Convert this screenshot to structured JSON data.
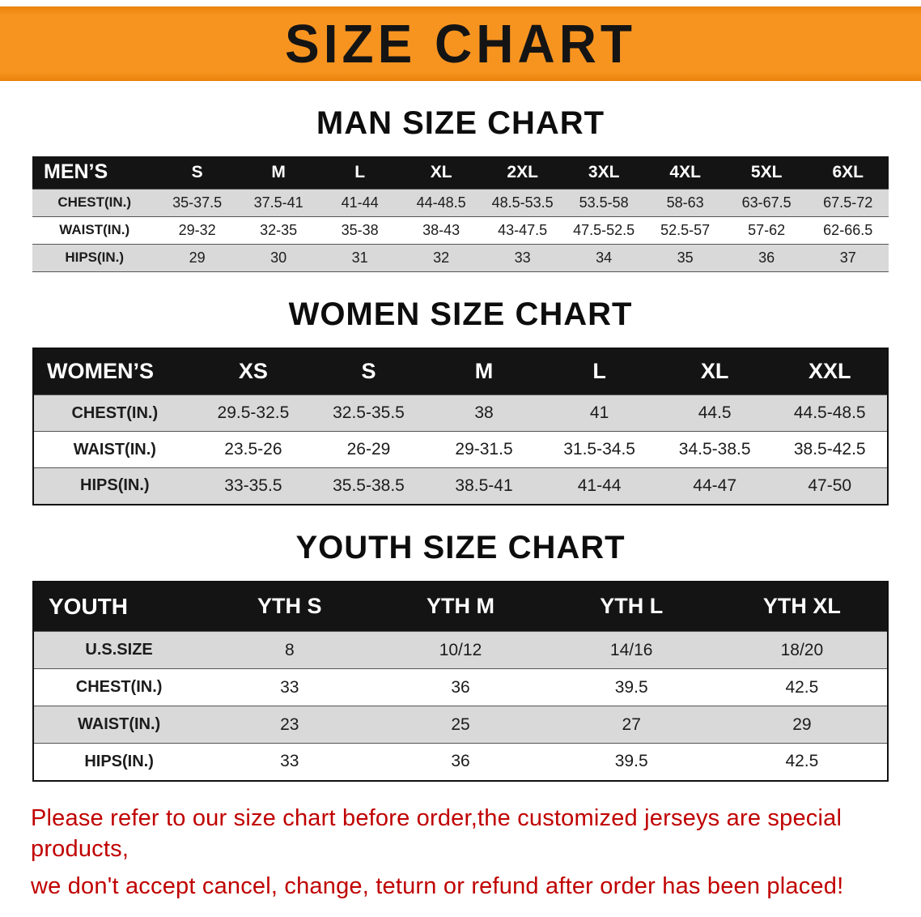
{
  "banner": {
    "title": "SIZE CHART"
  },
  "sections": [
    {
      "id": "men",
      "heading": "MAN SIZE CHART",
      "table": {
        "header": [
          "MEN’S",
          "S",
          "M",
          "L",
          "XL",
          "2XL",
          "3XL",
          "4XL",
          "5XL",
          "6XL"
        ],
        "rows": [
          [
            "CHEST(IN.)",
            "35-37.5",
            "37.5-41",
            "41-44",
            "44-48.5",
            "48.5-53.5",
            "53.5-58",
            "58-63",
            "63-67.5",
            "67.5-72"
          ],
          [
            "WAIST(IN.)",
            "29-32",
            "32-35",
            "35-38",
            "38-43",
            "43-47.5",
            "47.5-52.5",
            "52.5-57",
            "57-62",
            "62-66.5"
          ],
          [
            "HIPS(IN.)",
            "29",
            "30",
            "31",
            "32",
            "33",
            "34",
            "35",
            "36",
            "37"
          ]
        ]
      }
    },
    {
      "id": "women",
      "heading": "WOMEN SIZE CHART",
      "table": {
        "header": [
          "WOMEN’S",
          "XS",
          "S",
          "M",
          "L",
          "XL",
          "XXL"
        ],
        "rows": [
          [
            "CHEST(IN.)",
            "29.5-32.5",
            "32.5-35.5",
            "38",
            "41",
            "44.5",
            "44.5-48.5"
          ],
          [
            "WAIST(IN.)",
            "23.5-26",
            "26-29",
            "29-31.5",
            "31.5-34.5",
            "34.5-38.5",
            "38.5-42.5"
          ],
          [
            "HIPS(IN.)",
            "33-35.5",
            "35.5-38.5",
            "38.5-41",
            "41-44",
            "44-47",
            "47-50"
          ]
        ]
      }
    },
    {
      "id": "youth",
      "heading": "YOUTH SIZE CHART",
      "table": {
        "header": [
          "YOUTH",
          "YTH S",
          "YTH M",
          "YTH L",
          "YTH XL"
        ],
        "rows": [
          [
            "U.S.SIZE",
            "8",
            "10/12",
            "14/16",
            "18/20"
          ],
          [
            "CHEST(IN.)",
            "33",
            "36",
            "39.5",
            "42.5"
          ],
          [
            "WAIST(IN.)",
            "23",
            "25",
            "27",
            "29"
          ],
          [
            "HIPS(IN.)",
            "33",
            "36",
            "39.5",
            "42.5"
          ]
        ]
      }
    }
  ],
  "footer": {
    "line1": "Please refer to our size chart before order,the customized jerseys are special products,",
    "line2": "we don't accept cancel, change, teturn or refund after order has been placed!"
  },
  "colors": {
    "banner_orange": "#F79420",
    "table_header_black": "#141414",
    "stripe_gray": "#D9D9D9",
    "note_red": "#C00000"
  }
}
